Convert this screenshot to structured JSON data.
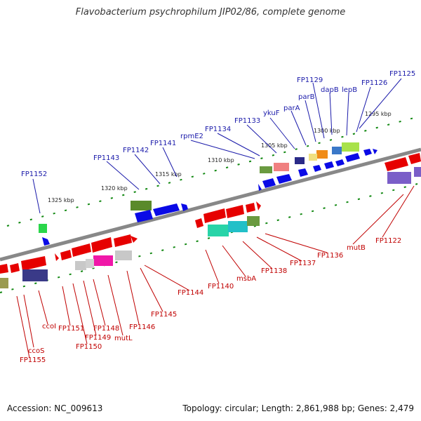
{
  "title": "Flavobacterium psychrophilum JIP02/86, complete genome",
  "footer": {
    "accession": "Accession: NC_009613",
    "summary": "Topology: circular; Length: 2,861,988 bp; Genes: 2,479"
  },
  "scale_ticks": [
    "1295 kbp",
    "1300 kbp",
    "1305 kbp",
    "1310 kbp",
    "1315 kbp",
    "1320 kbp",
    "1325 kbp"
  ],
  "top_labels": [
    "FP1125",
    "FP1126",
    "lepB",
    "dapB",
    "FP1129",
    "parB",
    "parA",
    "ykuF",
    "FP1133",
    "FP1134",
    "rpmE2",
    "FP1141",
    "FP1142",
    "FP1143",
    "FP1152"
  ],
  "bottom_labels": [
    "FP1122",
    "mutB",
    "FP1136",
    "FP1137",
    "FP1138",
    "msbA",
    "FP1140",
    "FP1144",
    "FP1145",
    "FP1146",
    "mutL",
    "FP1148",
    "FP1149",
    "FP1150",
    "FP1151",
    "ccoI",
    "ccoS",
    "FP1155"
  ],
  "colors": {
    "forward_arrow": "#0a0ae6",
    "reverse_arrow": "#e60000",
    "genome_line": "#888888",
    "tick_green": "#118811"
  }
}
